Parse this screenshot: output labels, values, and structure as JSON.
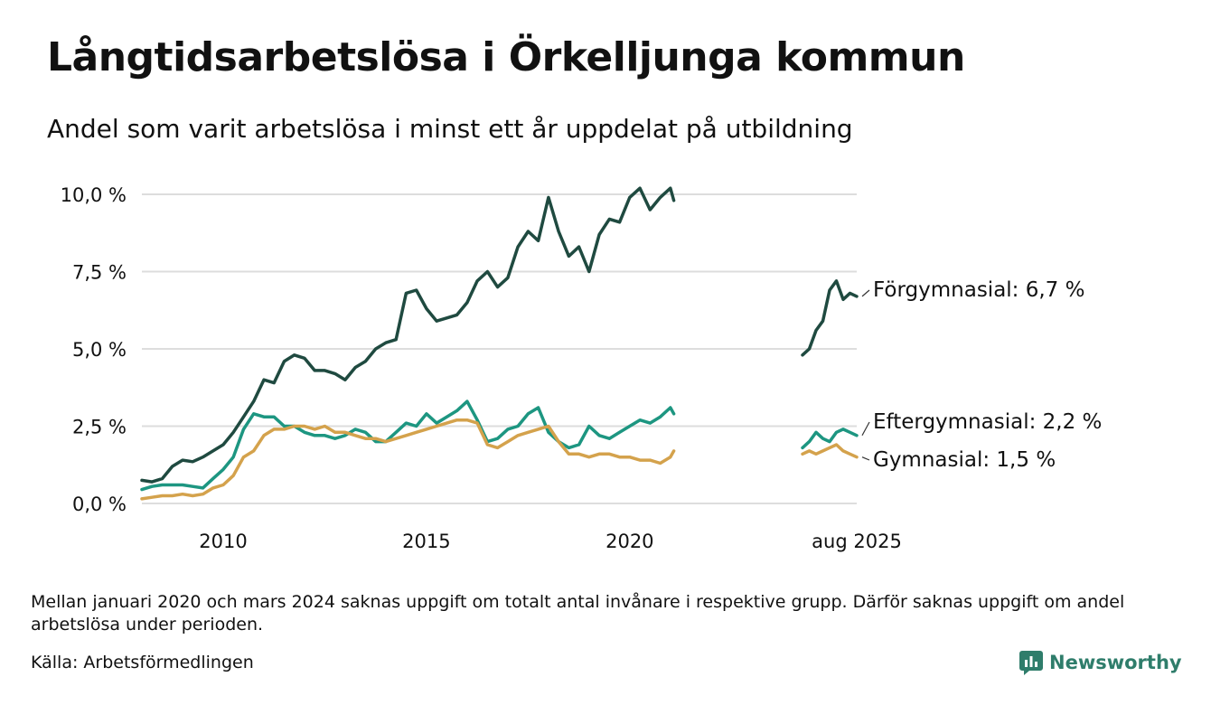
{
  "title": "Långtidsarbetslösa i Örkelljunga kommun",
  "subtitle": "Andel som varit arbetslösa i minst ett år uppdelat på utbildning",
  "note": "Mellan januari 2020 och mars 2024 saknas uppgift om totalt antal invånare i respektive grupp. Därför saknas uppgift om andel arbetslösa under perioden.",
  "source": "Källa: Arbetsförmedlingen",
  "brand": "Newsworthy",
  "colors": {
    "brand": "#2f7d6b",
    "grid": "#dddddd"
  },
  "chart_data": {
    "type": "line",
    "title": "Långtidsarbetslösa i Örkelljunga kommun",
    "subtitle": "Andel som varit arbetslösa i minst ett år uppdelat på utbildning",
    "ylim": [
      0,
      10
    ],
    "yticks": [
      {
        "value": 0,
        "label": "0,0 %"
      },
      {
        "value": 2.5,
        "label": "2,5 %"
      },
      {
        "value": 5,
        "label": "5,0 %"
      },
      {
        "value": 7.5,
        "label": "7,5 %"
      },
      {
        "value": 10,
        "label": "10,0 %"
      }
    ],
    "xlim": [
      "2008-01",
      "2025-08"
    ],
    "xticks": [
      {
        "value": "2010-01",
        "label": "2010"
      },
      {
        "value": "2015-01",
        "label": "2015"
      },
      {
        "value": "2020-01",
        "label": "2020"
      },
      {
        "value": "2025-08",
        "label": "aug 2025"
      }
    ],
    "grid": true,
    "series": [
      {
        "name": "Förgymnasial",
        "end_label": "Förgymnasial: 6,7 %",
        "color": "#1f4a40",
        "segments": [
          [
            [
              "2008-01",
              0.75
            ],
            [
              "2008-04",
              0.7
            ],
            [
              "2008-07",
              0.8
            ],
            [
              "2008-10",
              1.2
            ],
            [
              "2009-01",
              1.4
            ],
            [
              "2009-04",
              1.35
            ],
            [
              "2009-07",
              1.5
            ],
            [
              "2009-10",
              1.7
            ],
            [
              "2010-01",
              1.9
            ],
            [
              "2010-04",
              2.3
            ],
            [
              "2010-07",
              2.8
            ],
            [
              "2010-10",
              3.3
            ],
            [
              "2011-01",
              4.0
            ],
            [
              "2011-04",
              3.9
            ],
            [
              "2011-07",
              4.6
            ],
            [
              "2011-10",
              4.8
            ],
            [
              "2012-01",
              4.7
            ],
            [
              "2012-04",
              4.3
            ],
            [
              "2012-07",
              4.3
            ],
            [
              "2012-10",
              4.2
            ],
            [
              "2013-01",
              4.0
            ],
            [
              "2013-04",
              4.4
            ],
            [
              "2013-07",
              4.6
            ],
            [
              "2013-10",
              5.0
            ],
            [
              "2014-01",
              5.2
            ],
            [
              "2014-04",
              5.3
            ],
            [
              "2014-07",
              6.8
            ],
            [
              "2014-10",
              6.9
            ],
            [
              "2015-01",
              6.3
            ],
            [
              "2015-04",
              5.9
            ],
            [
              "2015-07",
              6.0
            ],
            [
              "2015-10",
              6.1
            ],
            [
              "2016-01",
              6.5
            ],
            [
              "2016-04",
              7.2
            ],
            [
              "2016-07",
              7.5
            ],
            [
              "2016-10",
              7.0
            ],
            [
              "2017-01",
              7.3
            ],
            [
              "2017-04",
              8.3
            ],
            [
              "2017-07",
              8.8
            ],
            [
              "2017-10",
              8.5
            ],
            [
              "2018-01",
              9.9
            ],
            [
              "2018-04",
              8.8
            ],
            [
              "2018-07",
              8.0
            ],
            [
              "2018-10",
              8.3
            ],
            [
              "2019-01",
              7.5
            ],
            [
              "2019-04",
              8.7
            ],
            [
              "2019-07",
              9.2
            ],
            [
              "2019-10",
              9.1
            ],
            [
              "2020-01",
              9.9
            ],
            [
              "2020-04",
              10.2
            ],
            [
              "2020-07",
              9.5
            ],
            [
              "2020-10",
              9.9
            ],
            [
              "2021-01",
              10.2
            ],
            [
              "2021-02",
              9.8
            ]
          ],
          [
            [
              "2024-04",
              4.8
            ],
            [
              "2024-06",
              5.0
            ],
            [
              "2024-08",
              5.6
            ],
            [
              "2024-10",
              5.9
            ],
            [
              "2024-12",
              6.9
            ],
            [
              "2025-02",
              7.2
            ],
            [
              "2025-04",
              6.6
            ],
            [
              "2025-06",
              6.8
            ],
            [
              "2025-08",
              6.7
            ]
          ]
        ]
      },
      {
        "name": "Eftergymnasial",
        "end_label": "Eftergymnasial: 2,2 %",
        "color": "#1d9681",
        "segments": [
          [
            [
              "2008-01",
              0.45
            ],
            [
              "2008-04",
              0.55
            ],
            [
              "2008-07",
              0.6
            ],
            [
              "2008-10",
              0.6
            ],
            [
              "2009-01",
              0.6
            ],
            [
              "2009-04",
              0.55
            ],
            [
              "2009-07",
              0.5
            ],
            [
              "2009-10",
              0.8
            ],
            [
              "2010-01",
              1.1
            ],
            [
              "2010-04",
              1.5
            ],
            [
              "2010-07",
              2.4
            ],
            [
              "2010-10",
              2.9
            ],
            [
              "2011-01",
              2.8
            ],
            [
              "2011-04",
              2.8
            ],
            [
              "2011-07",
              2.5
            ],
            [
              "2011-10",
              2.5
            ],
            [
              "2012-01",
              2.3
            ],
            [
              "2012-04",
              2.2
            ],
            [
              "2012-07",
              2.2
            ],
            [
              "2012-10",
              2.1
            ],
            [
              "2013-01",
              2.2
            ],
            [
              "2013-04",
              2.4
            ],
            [
              "2013-07",
              2.3
            ],
            [
              "2013-10",
              2.0
            ],
            [
              "2014-01",
              2.0
            ],
            [
              "2014-04",
              2.3
            ],
            [
              "2014-07",
              2.6
            ],
            [
              "2014-10",
              2.5
            ],
            [
              "2015-01",
              2.9
            ],
            [
              "2015-04",
              2.6
            ],
            [
              "2015-07",
              2.8
            ],
            [
              "2015-10",
              3.0
            ],
            [
              "2016-01",
              3.3
            ],
            [
              "2016-04",
              2.7
            ],
            [
              "2016-07",
              2.0
            ],
            [
              "2016-10",
              2.1
            ],
            [
              "2017-01",
              2.4
            ],
            [
              "2017-04",
              2.5
            ],
            [
              "2017-07",
              2.9
            ],
            [
              "2017-10",
              3.1
            ],
            [
              "2018-01",
              2.3
            ],
            [
              "2018-04",
              2.0
            ],
            [
              "2018-07",
              1.8
            ],
            [
              "2018-10",
              1.9
            ],
            [
              "2019-01",
              2.5
            ],
            [
              "2019-04",
              2.2
            ],
            [
              "2019-07",
              2.1
            ],
            [
              "2019-10",
              2.3
            ],
            [
              "2020-01",
              2.5
            ],
            [
              "2020-04",
              2.7
            ],
            [
              "2020-07",
              2.6
            ],
            [
              "2020-10",
              2.8
            ],
            [
              "2021-01",
              3.1
            ],
            [
              "2021-02",
              2.9
            ]
          ],
          [
            [
              "2024-04",
              1.8
            ],
            [
              "2024-06",
              2.0
            ],
            [
              "2024-08",
              2.3
            ],
            [
              "2024-10",
              2.1
            ],
            [
              "2024-12",
              2.0
            ],
            [
              "2025-02",
              2.3
            ],
            [
              "2025-04",
              2.4
            ],
            [
              "2025-06",
              2.3
            ],
            [
              "2025-08",
              2.2
            ]
          ]
        ]
      },
      {
        "name": "Gymnasial",
        "end_label": "Gymnasial: 1,5 %",
        "color": "#d4a24c",
        "segments": [
          [
            [
              "2008-01",
              0.15
            ],
            [
              "2008-04",
              0.2
            ],
            [
              "2008-07",
              0.25
            ],
            [
              "2008-10",
              0.25
            ],
            [
              "2009-01",
              0.3
            ],
            [
              "2009-04",
              0.25
            ],
            [
              "2009-07",
              0.3
            ],
            [
              "2009-10",
              0.5
            ],
            [
              "2010-01",
              0.6
            ],
            [
              "2010-04",
              0.9
            ],
            [
              "2010-07",
              1.5
            ],
            [
              "2010-10",
              1.7
            ],
            [
              "2011-01",
              2.2
            ],
            [
              "2011-04",
              2.4
            ],
            [
              "2011-07",
              2.4
            ],
            [
              "2011-10",
              2.5
            ],
            [
              "2012-01",
              2.5
            ],
            [
              "2012-04",
              2.4
            ],
            [
              "2012-07",
              2.5
            ],
            [
              "2012-10",
              2.3
            ],
            [
              "2013-01",
              2.3
            ],
            [
              "2013-04",
              2.2
            ],
            [
              "2013-07",
              2.1
            ],
            [
              "2013-10",
              2.1
            ],
            [
              "2014-01",
              2.0
            ],
            [
              "2014-04",
              2.1
            ],
            [
              "2014-07",
              2.2
            ],
            [
              "2014-10",
              2.3
            ],
            [
              "2015-01",
              2.4
            ],
            [
              "2015-04",
              2.5
            ],
            [
              "2015-07",
              2.6
            ],
            [
              "2015-10",
              2.7
            ],
            [
              "2016-01",
              2.7
            ],
            [
              "2016-04",
              2.6
            ],
            [
              "2016-07",
              1.9
            ],
            [
              "2016-10",
              1.8
            ],
            [
              "2017-01",
              2.0
            ],
            [
              "2017-04",
              2.2
            ],
            [
              "2017-07",
              2.3
            ],
            [
              "2017-10",
              2.4
            ],
            [
              "2018-01",
              2.5
            ],
            [
              "2018-04",
              2.0
            ],
            [
              "2018-07",
              1.6
            ],
            [
              "2018-10",
              1.6
            ],
            [
              "2019-01",
              1.5
            ],
            [
              "2019-04",
              1.6
            ],
            [
              "2019-07",
              1.6
            ],
            [
              "2019-10",
              1.5
            ],
            [
              "2020-01",
              1.5
            ],
            [
              "2020-04",
              1.4
            ],
            [
              "2020-07",
              1.4
            ],
            [
              "2020-10",
              1.3
            ],
            [
              "2021-01",
              1.5
            ],
            [
              "2021-02",
              1.7
            ]
          ],
          [
            [
              "2024-04",
              1.6
            ],
            [
              "2024-06",
              1.7
            ],
            [
              "2024-08",
              1.6
            ],
            [
              "2024-10",
              1.7
            ],
            [
              "2024-12",
              1.8
            ],
            [
              "2025-02",
              1.9
            ],
            [
              "2025-04",
              1.7
            ],
            [
              "2025-06",
              1.6
            ],
            [
              "2025-08",
              1.5
            ]
          ]
        ]
      }
    ]
  }
}
